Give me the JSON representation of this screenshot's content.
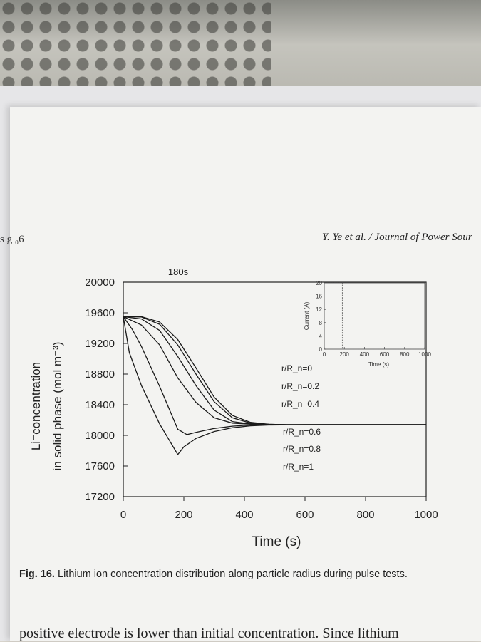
{
  "page": {
    "running_head": "Y. Ye et al. / Journal of Power Sour",
    "left_fragment": "s g  ₀6",
    "caption_label": "Fig. 16.",
    "caption_text": "Lithium ion concentration distribution along particle radius during pulse tests.",
    "body_line": "positive electrode is lower than initial concentration. Since lithium"
  },
  "chart_data": {
    "type": "line",
    "annotation": "180s",
    "xlabel": "Time (s)",
    "ylabel_line1": "Li⁺concentration",
    "ylabel_line2": "in solid phase (mol m⁻³)",
    "xlim": [
      0,
      1000
    ],
    "ylim": [
      17200,
      20000
    ],
    "xticks": [
      "0",
      "200",
      "400",
      "600",
      "800",
      "1000"
    ],
    "yticks": [
      "20000",
      "19600",
      "19200",
      "18800",
      "18400",
      "18000",
      "17600",
      "17200"
    ],
    "grid": false,
    "series": [
      {
        "name": "r/R_n=0",
        "x": [
          0,
          60,
          120,
          180,
          240,
          300,
          360,
          420,
          480,
          540,
          600,
          1000
        ],
        "y": [
          19550,
          19550,
          19480,
          19250,
          18880,
          18500,
          18260,
          18170,
          18145,
          18140,
          18140,
          18140
        ]
      },
      {
        "name": "r/R_n=0.2",
        "x": [
          0,
          60,
          120,
          180,
          240,
          300,
          360,
          420,
          480,
          540,
          600,
          1000
        ],
        "y": [
          19550,
          19545,
          19450,
          19180,
          18800,
          18440,
          18230,
          18160,
          18145,
          18140,
          18140,
          18140
        ]
      },
      {
        "name": "r/R_n=0.4",
        "x": [
          0,
          60,
          120,
          180,
          240,
          300,
          360,
          420,
          480,
          540,
          600,
          1000
        ],
        "y": [
          19550,
          19520,
          19370,
          19030,
          18650,
          18330,
          18180,
          18150,
          18142,
          18140,
          18140,
          18140
        ]
      },
      {
        "name": "r/R_n=0.6",
        "x": [
          0,
          60,
          120,
          180,
          240,
          300,
          360,
          420,
          480,
          540,
          600,
          1000
        ],
        "y": [
          19550,
          19440,
          19180,
          18750,
          18430,
          18230,
          18160,
          18145,
          18141,
          18140,
          18140,
          18140
        ]
      },
      {
        "name": "r/R_n=0.8",
        "x": [
          0,
          30,
          60,
          120,
          180,
          210,
          240,
          300,
          360,
          420,
          480,
          600,
          1000
        ],
        "y": [
          19550,
          19380,
          19160,
          18640,
          18080,
          18010,
          18040,
          18090,
          18120,
          18135,
          18140,
          18140,
          18140
        ]
      },
      {
        "name": "r/R_n=1",
        "x": [
          0,
          20,
          60,
          120,
          180,
          200,
          240,
          300,
          360,
          420,
          480,
          600,
          1000
        ],
        "y": [
          19550,
          19080,
          18650,
          18150,
          17750,
          17850,
          17960,
          18050,
          18100,
          18125,
          18135,
          18140,
          18140
        ]
      }
    ],
    "inset": {
      "type": "line",
      "xlabel": "Time (s)",
      "ylabel": "Current (A)",
      "xlim": [
        0,
        1000
      ],
      "ylim": [
        0,
        20
      ],
      "xticks": [
        "0",
        "200",
        "400",
        "600",
        "800",
        "1000"
      ],
      "yticks": [
        "0",
        "4",
        "8",
        "12",
        "16",
        "20"
      ],
      "series": [
        {
          "x": [
            0,
            180,
            180,
            1000
          ],
          "y": [
            20,
            20,
            0,
            0
          ]
        }
      ]
    }
  }
}
